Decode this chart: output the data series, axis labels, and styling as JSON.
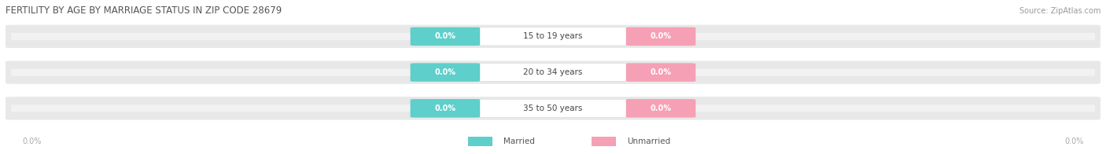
{
  "title": "FERTILITY BY AGE BY MARRIAGE STATUS IN ZIP CODE 28679",
  "source": "Source: ZipAtlas.com",
  "categories": [
    "15 to 19 years",
    "20 to 34 years",
    "35 to 50 years"
  ],
  "married_values": [
    "0.0%",
    "0.0%",
    "0.0%"
  ],
  "unmarried_values": [
    "0.0%",
    "0.0%",
    "0.0%"
  ],
  "married_color": "#5ecfca",
  "unmarried_color": "#f5a0b5",
  "bar_bg_color": "#e8e8e8",
  "bar_bg_color2": "#f2f2f2",
  "label_color": "#ffffff",
  "category_label_color": "#444444",
  "title_color": "#555555",
  "source_color": "#999999",
  "axis_label_color": "#aaaaaa",
  "legend_label_color": "#555555",
  "fig_width": 14.06,
  "fig_height": 1.96,
  "background_color": "#ffffff"
}
